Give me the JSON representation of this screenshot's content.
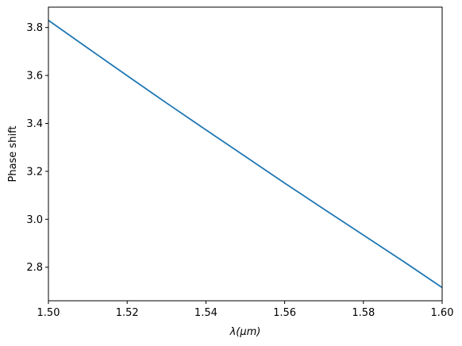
{
  "chart_data": {
    "type": "line",
    "title": "",
    "xlabel": "λ(μm)",
    "ylabel": "Phase shift",
    "xlim": [
      1.5,
      1.6
    ],
    "ylim": [
      2.66,
      3.885
    ],
    "grid": false,
    "x_ticks": [
      1.5,
      1.52,
      1.54,
      1.56,
      1.58,
      1.6
    ],
    "x_tick_labels": [
      "1.50",
      "1.52",
      "1.54",
      "1.56",
      "1.58",
      "1.60"
    ],
    "y_ticks": [
      2.8,
      3.0,
      3.2,
      3.4,
      3.6,
      3.8
    ],
    "y_tick_labels": [
      "2.8",
      "3.0",
      "3.2",
      "3.4",
      "3.6",
      "3.8"
    ],
    "series": [
      {
        "color": "#1f77b4",
        "x": [
          1.5,
          1.51,
          1.52,
          1.53,
          1.54,
          1.55,
          1.56,
          1.57,
          1.58,
          1.59,
          1.6
        ],
        "y": [
          3.83,
          3.714,
          3.599,
          3.485,
          3.373,
          3.262,
          3.151,
          3.042,
          2.934,
          2.826,
          2.715
        ]
      }
    ]
  }
}
